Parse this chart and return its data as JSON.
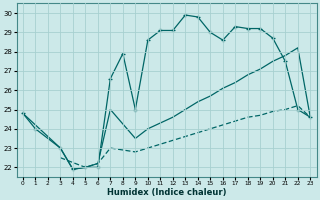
{
  "xlabel": "Humidex (Indice chaleur)",
  "bg_color": "#cce9e9",
  "grid_color": "#a8d0d0",
  "line_color": "#006666",
  "xlim": [
    -0.5,
    23.5
  ],
  "ylim": [
    21.5,
    30.5
  ],
  "xticks": [
    0,
    1,
    2,
    3,
    4,
    5,
    6,
    7,
    8,
    9,
    10,
    11,
    12,
    13,
    14,
    15,
    16,
    17,
    18,
    19,
    20,
    21,
    22,
    23
  ],
  "yticks": [
    22,
    23,
    24,
    25,
    26,
    27,
    28,
    29,
    30
  ],
  "line1_x": [
    0,
    1,
    3,
    4,
    5,
    6,
    7,
    8,
    9,
    10,
    11,
    12,
    13,
    14,
    15,
    16,
    17,
    18,
    19,
    20,
    21,
    22,
    23
  ],
  "line1_y": [
    24.8,
    24.0,
    23.0,
    21.9,
    22.0,
    22.0,
    26.6,
    27.9,
    25.0,
    28.6,
    29.1,
    29.1,
    29.9,
    29.8,
    29.0,
    28.6,
    29.3,
    29.2,
    29.2,
    28.7,
    27.5,
    25.0,
    24.6
  ],
  "line2_x": [
    0,
    3,
    4,
    5,
    6,
    7,
    9,
    10,
    11,
    12,
    13,
    14,
    15,
    16,
    17,
    18,
    19,
    20,
    21,
    22,
    23
  ],
  "line2_y": [
    24.8,
    23.0,
    21.9,
    22.0,
    22.2,
    25.0,
    23.5,
    24.0,
    24.3,
    24.6,
    25.0,
    25.4,
    25.7,
    26.1,
    26.4,
    26.8,
    27.1,
    27.5,
    27.8,
    28.2,
    24.6
  ],
  "line3_x": [
    3,
    5,
    6,
    7,
    9,
    10,
    11,
    12,
    13,
    14,
    15,
    16,
    17,
    18,
    19,
    20,
    21,
    22,
    23
  ],
  "line3_y": [
    22.5,
    22.0,
    22.2,
    23.0,
    22.8,
    23.0,
    23.2,
    23.4,
    23.6,
    23.8,
    24.0,
    24.2,
    24.4,
    24.6,
    24.7,
    24.9,
    25.0,
    25.2,
    24.6
  ]
}
